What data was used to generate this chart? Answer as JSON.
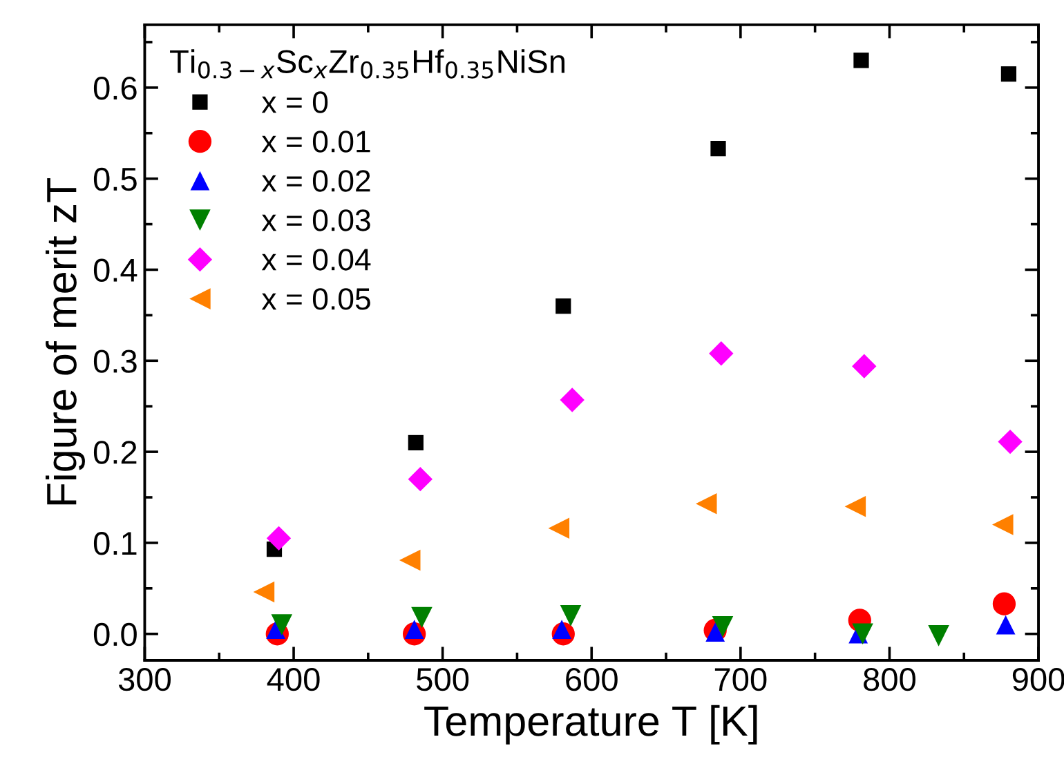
{
  "chart_data": {
    "type": "scatter",
    "xlabel": "Temperature T [K]",
    "ylabel": "Figure of merit zT",
    "legend_title": "Ti$_{0.3−x}$Sc$_{x}$Zr$_{0.35}$Hf$_{0.35}$NiSn",
    "xlim": [
      300,
      900
    ],
    "xticks": [
      300,
      400,
      500,
      600,
      700,
      800,
      900
    ],
    "ylim": [
      -0.029,
      0.669
    ],
    "yticks": [
      {
        "value": 0.0,
        "label": "0.0"
      },
      0.1,
      0.2,
      0.3,
      0.4,
      0.5,
      0.6
    ],
    "grid": false,
    "legend": "top left",
    "series": [
      {
        "name": "x = 0",
        "color": "#000000",
        "marker": "square",
        "x": [
          387,
          482,
          581,
          685,
          781,
          880
        ],
        "values": [
          0.093,
          0.21,
          0.36,
          0.533,
          0.63,
          0.615
        ]
      },
      {
        "name": "x = 0.01",
        "color": "#ff0000",
        "marker": "circle",
        "x": [
          389,
          481,
          581,
          683,
          780,
          877
        ],
        "values": [
          0.0,
          0.0,
          0.0,
          0.004,
          0.015,
          0.033
        ]
      },
      {
        "name": "x = 0.02",
        "color": "#0000ff",
        "marker": "triangle",
        "x": [
          388,
          481,
          580,
          683,
          779,
          878
        ],
        "values": [
          0.005,
          0.005,
          0.005,
          0.002,
          0.0,
          0.01
        ]
      },
      {
        "name": "x = 0.03",
        "color": "#008000",
        "marker": "triangle_down",
        "x": [
          392,
          486,
          586,
          688,
          782,
          833
        ],
        "values": [
          0.01,
          0.018,
          0.02,
          0.008,
          0.0,
          -0.002
        ]
      },
      {
        "name": "x = 0.04",
        "color": "#ff00ff",
        "marker": "diamond",
        "x": [
          390,
          485,
          587,
          687,
          783,
          881
        ],
        "values": [
          0.105,
          0.17,
          0.257,
          0.308,
          0.294,
          0.211
        ]
      },
      {
        "name": "x = 0.05",
        "color": "#ff8000",
        "marker": "triangle_left",
        "x": [
          380,
          478,
          578,
          677,
          777,
          876
        ],
        "values": [
          0.046,
          0.081,
          0.116,
          0.143,
          0.14,
          0.12
        ]
      }
    ]
  }
}
